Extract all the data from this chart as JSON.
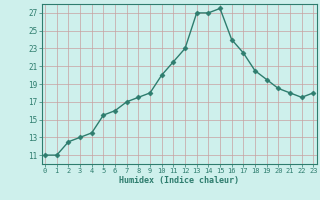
{
  "x": [
    0,
    1,
    2,
    3,
    4,
    5,
    6,
    7,
    8,
    9,
    10,
    11,
    12,
    13,
    14,
    15,
    16,
    17,
    18,
    19,
    20,
    21,
    22,
    23
  ],
  "y": [
    11,
    11,
    12.5,
    13,
    13.5,
    15.5,
    16,
    17,
    17.5,
    18,
    20,
    21.5,
    23,
    27,
    27,
    27.5,
    24,
    22.5,
    20.5,
    19.5,
    18.5,
    18,
    17.5,
    18
  ],
  "xlabel": "Humidex (Indice chaleur)",
  "xlim": [
    -0.3,
    23.3
  ],
  "ylim": [
    10,
    28
  ],
  "yticks": [
    11,
    13,
    15,
    17,
    19,
    21,
    23,
    25,
    27
  ],
  "xticks": [
    0,
    1,
    2,
    3,
    4,
    5,
    6,
    7,
    8,
    9,
    10,
    11,
    12,
    13,
    14,
    15,
    16,
    17,
    18,
    19,
    20,
    21,
    22,
    23
  ],
  "xtick_labels": [
    "0",
    "1",
    "2",
    "3",
    "4",
    "5",
    "6",
    "7",
    "8",
    "9",
    "10",
    "11",
    "12",
    "13",
    "14",
    "15",
    "16",
    "17",
    "18",
    "19",
    "20",
    "21",
    "22",
    "23"
  ],
  "line_color": "#2e7d6e",
  "marker": "D",
  "marker_size": 2.5,
  "bg_color": "#cef0ec",
  "grid_color": "#c8a0a0",
  "axes_bg": "#cef0ec",
  "fig_bg": "#cef0ec",
  "tick_color": "#2e7d6e",
  "spine_color": "#2e7d6e"
}
